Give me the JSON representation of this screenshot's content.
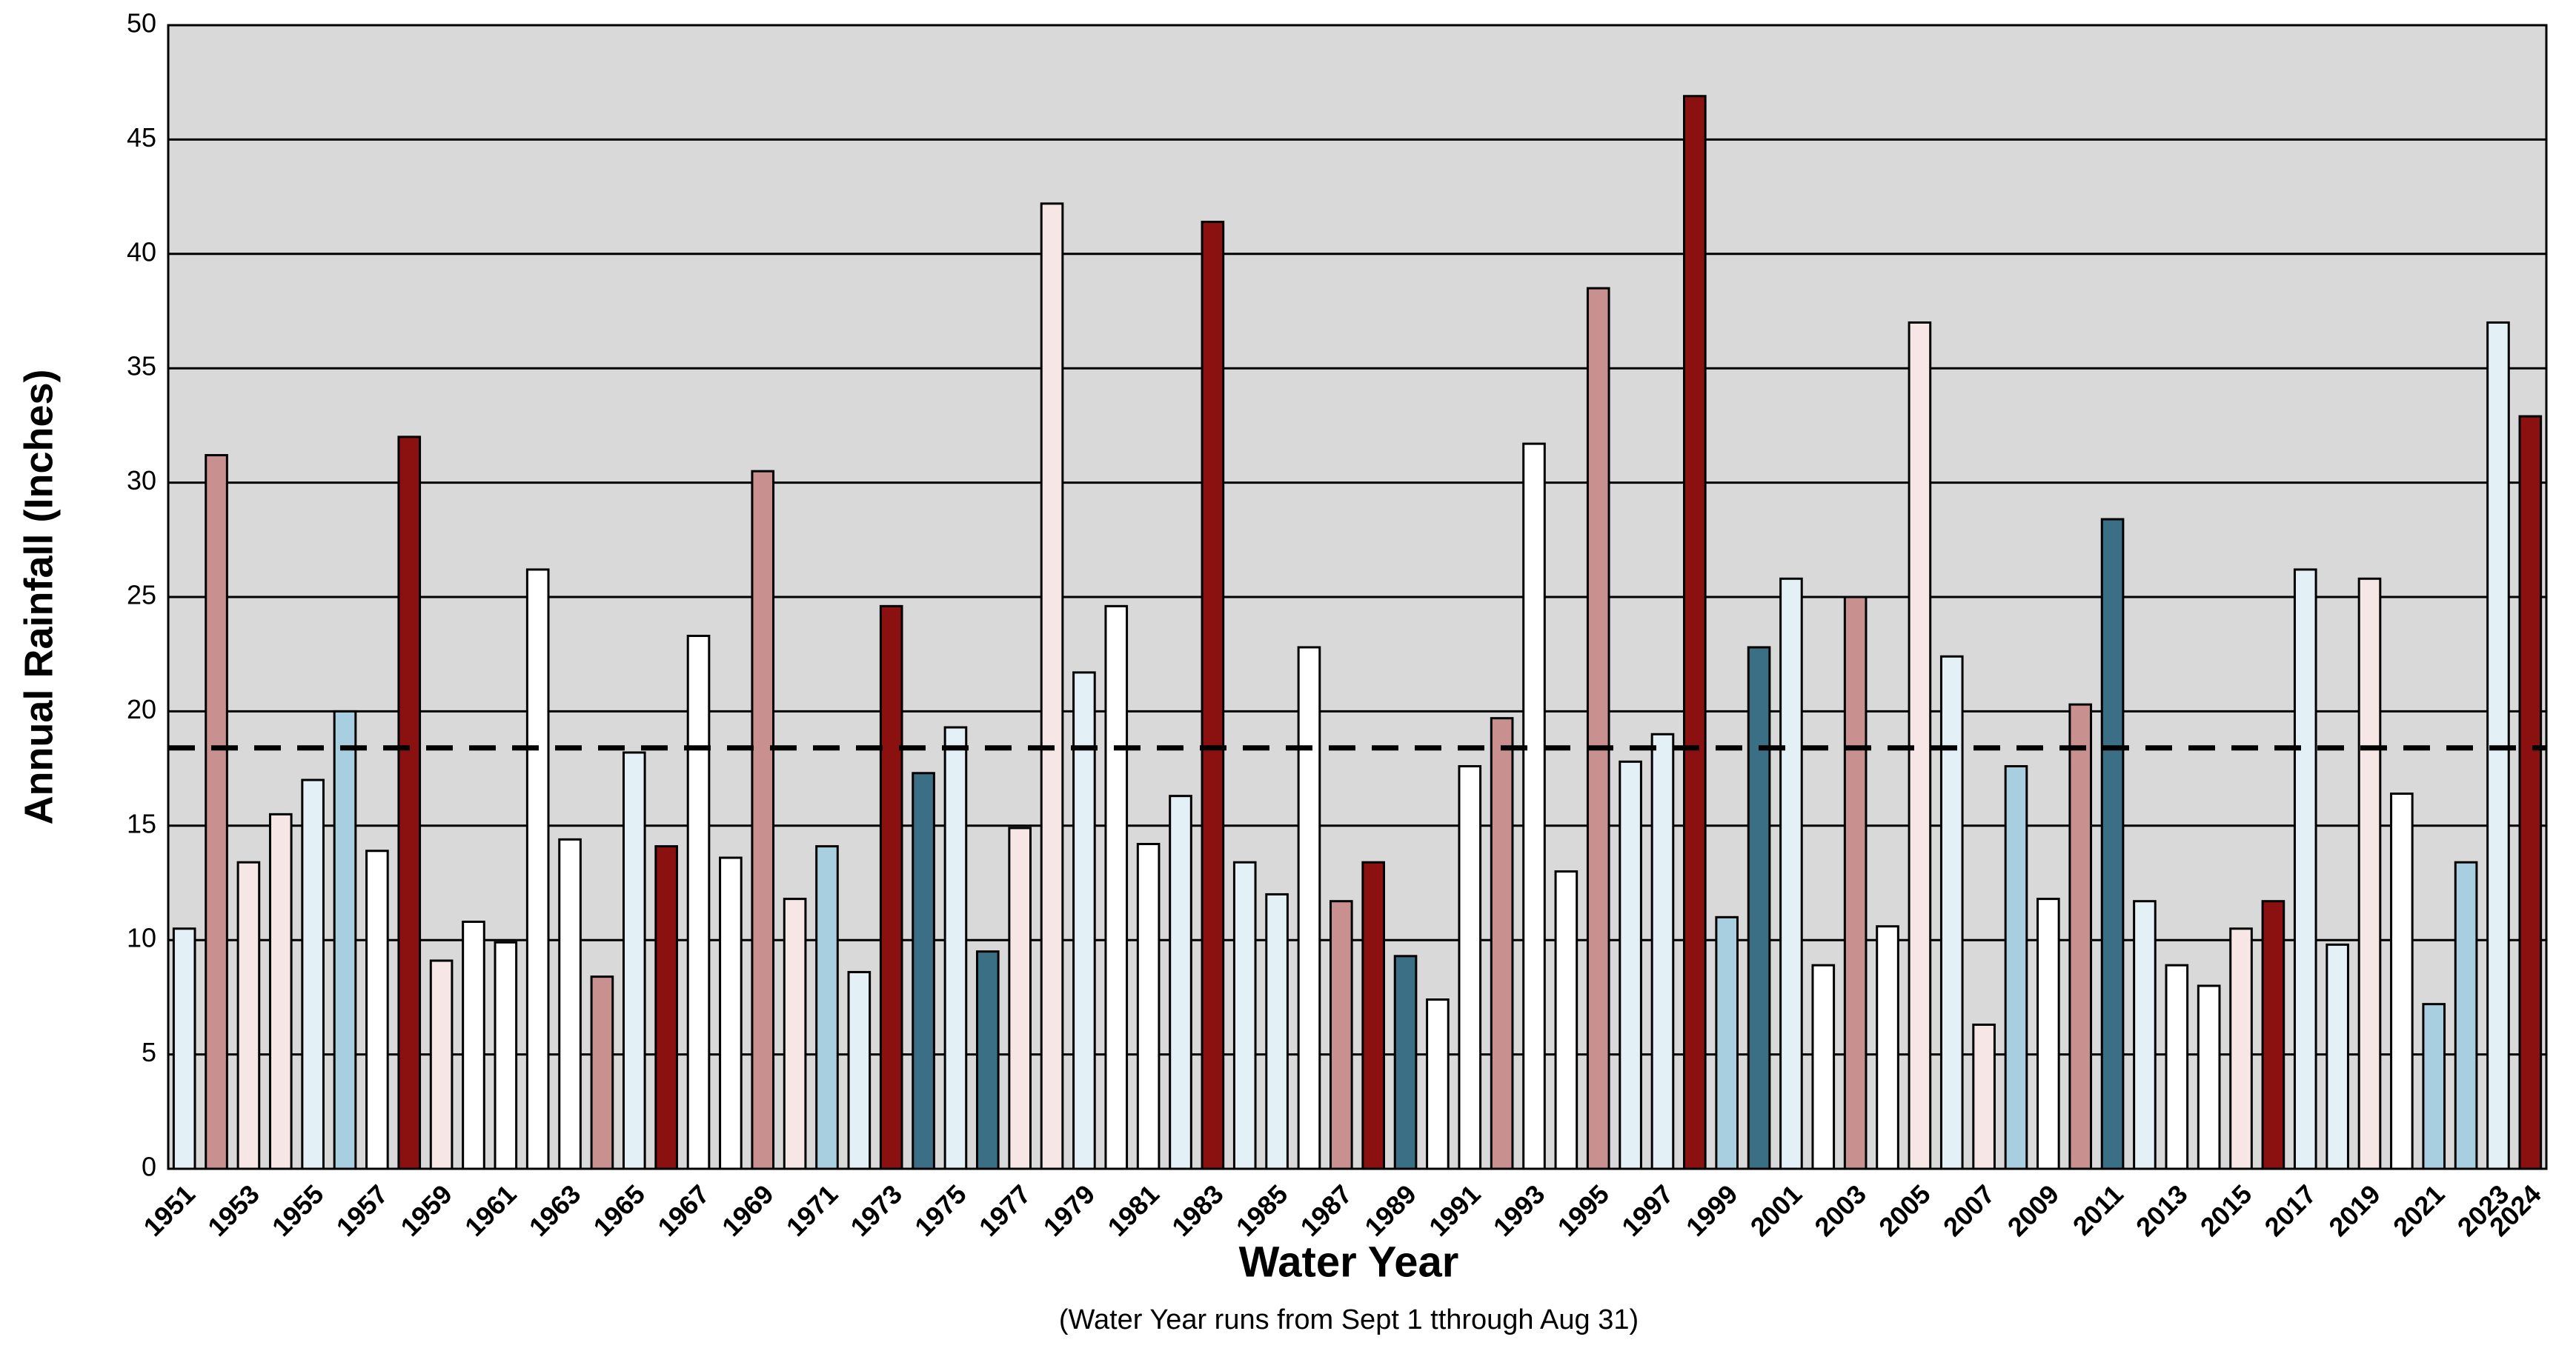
{
  "chart_data": {
    "type": "bar",
    "y_label": "Annual Rainfall (Inches)",
    "x_label": "Water Year",
    "subtitle": "(Water Year runs from Sept 1 tthrough Aug 31)",
    "categories": [
      "1951",
      null,
      "1953",
      null,
      "1955",
      null,
      "1957",
      null,
      "1959",
      null,
      "1961",
      null,
      "1963",
      null,
      "1965",
      null,
      "1967",
      null,
      "1969",
      null,
      "1971",
      null,
      "1973",
      null,
      "1975",
      null,
      "1977",
      null,
      "1979",
      null,
      "1981",
      null,
      "1983",
      null,
      "1985",
      null,
      "1987",
      null,
      "1989",
      null,
      "1991",
      null,
      "1993",
      null,
      "1995",
      null,
      "1997",
      null,
      "1999",
      null,
      "2001",
      null,
      "2003",
      null,
      "2005",
      null,
      "2007",
      null,
      "2009",
      null,
      "2011",
      null,
      "2013",
      null,
      "2015",
      null,
      "2017",
      null,
      "2019",
      null,
      "2021",
      null,
      "2023",
      "2024"
    ],
    "values": [
      10.5,
      31.2,
      13.4,
      15.5,
      17,
      20,
      13.9,
      32,
      9.1,
      10.8,
      9.9,
      26.2,
      14.4,
      8.4,
      18.2,
      14.1,
      23.3,
      13.6,
      30.5,
      11.8,
      14.1,
      8.6,
      24.6,
      17.3,
      19.3,
      9.5,
      14.9,
      42.2,
      21.7,
      24.6,
      14.2,
      16.3,
      41.4,
      13.4,
      12,
      22.8,
      11.7,
      13.4,
      9.3,
      7.4,
      17.6,
      19.7,
      31.7,
      13,
      38.5,
      17.8,
      19,
      46.9,
      11,
      22.8,
      25.8,
      8.9,
      25,
      10.6,
      37,
      22.4,
      6.3,
      17.6,
      11.8,
      20.3,
      28.4,
      11.7,
      8.9,
      8,
      10.5,
      11.7,
      26.2,
      9.8,
      25.8,
      16.4,
      7.2,
      13.4,
      37,
      32.9
    ],
    "colors": [
      "#e3f0f5",
      "#c99090",
      "#f7e6e6",
      "#f7e6e6",
      "#e3f0f5",
      "#a8cfe0",
      "#ffffff",
      "#8b1010",
      "#f7e6e6",
      "#ffffff",
      "#ffffff",
      "#ffffff",
      "#ffffff",
      "#c99090",
      "#e3f0f5",
      "#8b1010",
      "#ffffff",
      "#ffffff",
      "#c99090",
      "#f7e6e6",
      "#a8cfe0",
      "#e3f0f5",
      "#8b1010",
      "#3a6f85",
      "#e3f0f5",
      "#3a6f85",
      "#f7e6e6",
      "#f7e6e6",
      "#e3f0f5",
      "#ffffff",
      "#ffffff",
      "#e3f0f5",
      "#8b1010",
      "#e3f0f5",
      "#e3f0f5",
      "#ffffff",
      "#c99090",
      "#8b1010",
      "#3a6f85",
      "#ffffff",
      "#ffffff",
      "#c99090",
      "#ffffff",
      "#ffffff",
      "#c99090",
      "#e3f0f5",
      "#e3f0f5",
      "#8b1010",
      "#a8cfe0",
      "#3a6f85",
      "#e3f0f5",
      "#ffffff",
      "#c99090",
      "#ffffff",
      "#f7e6e6",
      "#e3f0f5",
      "#f7e6e6",
      "#a8cfe0",
      "#ffffff",
      "#c99090",
      "#3a6f85",
      "#e3f0f5",
      "#ffffff",
      "#ffffff",
      "#f7e6e6",
      "#8b1010",
      "#e3f0f5",
      "#e3f0f5",
      "#f7e6e6",
      "#ffffff",
      "#a8cfe0",
      "#a8cfe0",
      "#e3f0f5",
      "#8b1010"
    ],
    "mean_line": 18.4,
    "ylim": [
      0,
      50
    ],
    "yticks": [
      0,
      5,
      10,
      15,
      20,
      25,
      30,
      35,
      40,
      45,
      50
    ],
    "grid": true
  }
}
